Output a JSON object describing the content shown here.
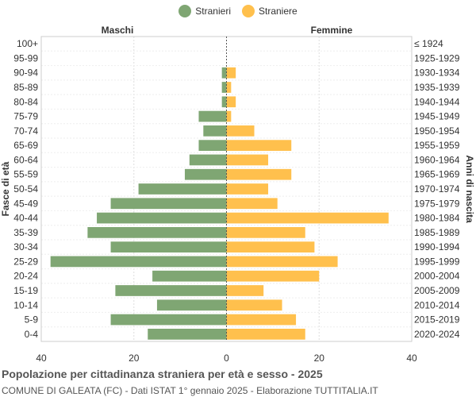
{
  "colors": {
    "male": "#7fa673",
    "female": "#ffc04d",
    "grid": "#dddddd",
    "text": "#333333",
    "axis": "#555555"
  },
  "legend": {
    "male_label": "Stranieri",
    "female_label": "Straniere"
  },
  "side_labels": {
    "left": "Maschi",
    "right": "Femmine"
  },
  "footer": {
    "title": "Popolazione per cittadinanza straniera per età e sesso - 2025",
    "subtitle": "COMUNE DI GALEATA (FC) - Dati ISTAT 1° gennaio 2025 - Elaborazione TUTTITALIA.IT"
  },
  "chart_data": {
    "type": "bar",
    "orientation": "horizontal-pyramid",
    "ylabel_left": "Fasce di età",
    "ylabel_right": "Anni di nascita",
    "xlim": [
      -40,
      40
    ],
    "x_ticks": [
      -40,
      -20,
      0,
      20,
      40
    ],
    "x_tick_labels": [
      "40",
      "20",
      "0",
      "20",
      "40"
    ],
    "grid": true,
    "legend_position": "top-center",
    "categories": [
      "100+",
      "95-99",
      "90-94",
      "85-89",
      "80-84",
      "75-79",
      "70-74",
      "65-69",
      "60-64",
      "55-59",
      "50-54",
      "45-49",
      "40-44",
      "35-39",
      "30-34",
      "25-29",
      "20-24",
      "15-19",
      "10-14",
      "5-9",
      "0-4"
    ],
    "birth_years": [
      "≤ 1924",
      "1925-1929",
      "1930-1934",
      "1935-1939",
      "1940-1944",
      "1945-1949",
      "1950-1954",
      "1955-1959",
      "1960-1964",
      "1965-1969",
      "1970-1974",
      "1975-1979",
      "1980-1984",
      "1985-1989",
      "1990-1994",
      "1995-1999",
      "2000-2004",
      "2005-2009",
      "2010-2014",
      "2015-2019",
      "2020-2024"
    ],
    "series": [
      {
        "name": "Stranieri",
        "values": [
          0,
          0,
          1,
          1,
          1,
          6,
          5,
          6,
          8,
          9,
          19,
          25,
          28,
          30,
          25,
          38,
          16,
          24,
          15,
          25,
          17
        ]
      },
      {
        "name": "Straniere",
        "values": [
          0,
          0,
          2,
          1,
          2,
          1,
          6,
          14,
          9,
          14,
          9,
          11,
          35,
          17,
          19,
          24,
          20,
          8,
          12,
          15,
          17
        ]
      }
    ]
  }
}
